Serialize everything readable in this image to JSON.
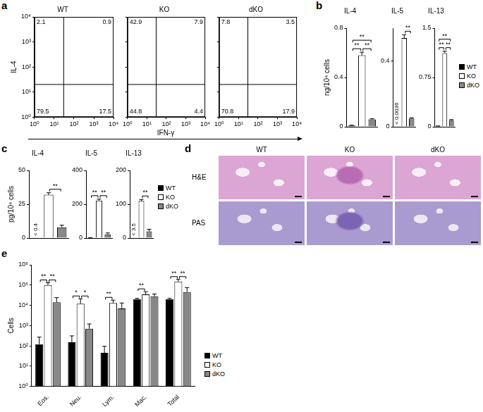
{
  "chart_data": [
    {
      "panel": "a",
      "type": "scatter",
      "log": true,
      "x_label": "IFN-γ",
      "y_label": "IL-4",
      "xlim": [
        1,
        10000
      ],
      "ylim": [
        1,
        10000
      ],
      "xticks": [
        {
          "value": 1,
          "label": "10⁰"
        },
        {
          "value": 10,
          "label": "10¹"
        },
        {
          "value": 100,
          "label": "10²"
        },
        {
          "value": 1000,
          "label": "10³"
        },
        {
          "value": 10000,
          "label": "10⁴"
        }
      ],
      "yticks": [
        {
          "value": 1,
          "label": "10⁰"
        },
        {
          "value": 10,
          "label": "10¹"
        },
        {
          "value": 100,
          "label": "10²"
        },
        {
          "value": 1000,
          "label": "10³"
        },
        {
          "value": 10000,
          "label": "10⁴"
        }
      ],
      "gate": {
        "x": 30,
        "y": 20
      },
      "plots": [
        {
          "title": "WT",
          "quadrants": {
            "upper_left": 2.1,
            "upper_right": 0.9,
            "lower_left": 79.5,
            "lower_right": 17.5
          }
        },
        {
          "title": "KO",
          "quadrants": {
            "upper_left": 42.9,
            "upper_right": 7.9,
            "lower_left": 44.8,
            "lower_right": 4.4
          }
        },
        {
          "title": "dKO",
          "quadrants": {
            "upper_left": 7.8,
            "upper_right": 3.5,
            "lower_left": 70.8,
            "lower_right": 17.9
          }
        }
      ]
    },
    {
      "panel": "b",
      "type": "bar",
      "y_label": "ng/10⁴ cells",
      "categories": [
        "WT",
        "KO",
        "dKO"
      ],
      "colors": [
        "#000000",
        "#ffffff",
        "#888888"
      ],
      "tick_labels": "y",
      "legend": "right",
      "plots": [
        {
          "title": "IL-4",
          "ylim": [
            0,
            0.8
          ],
          "yticks": [
            0,
            0.4,
            0.8
          ],
          "values": [
            0.01,
            0.58,
            0.06
          ],
          "errors": [
            0.003,
            0.025,
            0.005
          ],
          "significance": [
            {
              "pair": [
                "WT",
                "KO"
              ],
              "label": "**"
            },
            {
              "pair": [
                "KO",
                "dKO"
              ],
              "label": "**"
            },
            {
              "pair": [
                "WT",
                "dKO"
              ],
              "label": "**"
            }
          ]
        },
        {
          "title": "IL-5",
          "ylim": [
            0,
            0.6
          ],
          "yticks": [
            0,
            0.4
          ],
          "values": [
            null,
            0.54,
            0.05
          ],
          "errors": [
            null,
            0.02,
            0.005
          ],
          "annotations": [
            {
              "category": "WT",
              "text": "< 0.0036"
            }
          ],
          "significance": [
            {
              "pair": [
                "KO",
                "dKO"
              ],
              "label": "**"
            }
          ]
        },
        {
          "title": "IL-13",
          "ylim": [
            0,
            1.5
          ],
          "yticks": [
            0,
            0.75,
            1.5
          ],
          "values": [
            0.01,
            1.12,
            0.1
          ],
          "errors": [
            0.003,
            0.03,
            0.01
          ],
          "significance": [
            {
              "pair": [
                "WT",
                "KO"
              ],
              "label": "**"
            },
            {
              "pair": [
                "KO",
                "dKO"
              ],
              "label": "**"
            },
            {
              "pair": [
                "WT",
                "dKO"
              ],
              "label": "**"
            }
          ]
        }
      ]
    },
    {
      "panel": "c",
      "type": "bar",
      "y_label": "pg/10⁴ cells",
      "categories": [
        "WT",
        "KO",
        "dKO"
      ],
      "colors": [
        "#000000",
        "#ffffff",
        "#888888"
      ],
      "tick_labels": "y",
      "legend": "right",
      "plots": [
        {
          "title": "IL-4",
          "ylim": [
            0,
            50
          ],
          "yticks": [
            0,
            25,
            50
          ],
          "values": [
            null,
            32,
            8
          ],
          "errors": [
            null,
            1.5,
            1.5
          ],
          "annotations": [
            {
              "category": "WT",
              "text": "< 0.4"
            }
          ],
          "significance": [
            {
              "pair": [
                "KO",
                "dKO"
              ],
              "label": "**"
            }
          ]
        },
        {
          "title": "IL-5",
          "ylim": [
            0,
            400
          ],
          "yticks": [
            0,
            200,
            400
          ],
          "values": [
            1,
            222,
            22
          ],
          "errors": [
            0.5,
            8,
            8
          ],
          "significance": [
            {
              "pair": [
                "WT",
                "KO"
              ],
              "label": "**"
            },
            {
              "pair": [
                "KO",
                "dKO"
              ],
              "label": "**"
            }
          ]
        },
        {
          "title": "IL-13",
          "ylim": [
            0,
            200
          ],
          "yticks": [
            0,
            100,
            200
          ],
          "values": [
            null,
            110,
            20
          ],
          "errors": [
            null,
            4,
            6
          ],
          "annotations": [
            {
              "category": "WT",
              "text": "< 3.5"
            }
          ],
          "significance": [
            {
              "pair": [
                "KO",
                "dKO"
              ],
              "label": "**"
            }
          ]
        }
      ]
    },
    {
      "panel": "e",
      "type": "bar",
      "log": "y",
      "y_label": "Cells",
      "legend": "right",
      "categories": [
        "Eos.",
        "Neu.",
        "Lym.",
        "Mac.",
        "Total"
      ],
      "ylim": [
        1,
        1000000
      ],
      "yticks": [
        {
          "value": 1,
          "label": "10⁰"
        },
        {
          "value": 10,
          "label": "10¹"
        },
        {
          "value": 100,
          "label": "10²"
        },
        {
          "value": 1000,
          "label": "10³"
        },
        {
          "value": 10000,
          "label": "10⁴"
        },
        {
          "value": 100000,
          "label": "10⁵"
        },
        {
          "value": 1000000,
          "label": "10⁶"
        }
      ],
      "series": [
        {
          "name": "WT",
          "color": "#000000",
          "values": [
            120,
            150,
            45,
            20000,
            20000
          ],
          "errors": [
            150,
            160,
            50,
            2000,
            2000
          ]
        },
        {
          "name": "KO",
          "color": "#ffffff",
          "values": [
            100000,
            12000,
            13000,
            35000,
            150000
          ],
          "errors": [
            30000,
            9000,
            5000,
            12000,
            40000
          ]
        },
        {
          "name": "dKO",
          "color": "#888888",
          "values": [
            14000,
            700,
            7000,
            28000,
            45000
          ],
          "errors": [
            10000,
            500,
            6000,
            8000,
            30000
          ]
        }
      ],
      "significance": [
        {
          "category": "Eos.",
          "pair": [
            "WT",
            "KO"
          ],
          "label": "**"
        },
        {
          "category": "Eos.",
          "pair": [
            "KO",
            "dKO"
          ],
          "label": "**"
        },
        {
          "category": "Neu.",
          "pair": [
            "WT",
            "KO"
          ],
          "label": "*"
        },
        {
          "category": "Neu.",
          "pair": [
            "KO",
            "dKO"
          ],
          "label": "*"
        },
        {
          "category": "Lym.",
          "pair": [
            "WT",
            "KO"
          ],
          "label": "**"
        },
        {
          "category": "Mac.",
          "pair": [
            "WT",
            "KO"
          ],
          "label": "**"
        },
        {
          "category": "Total",
          "pair": [
            "WT",
            "KO"
          ],
          "label": "**"
        },
        {
          "category": "Total",
          "pair": [
            "KO",
            "dKO"
          ],
          "label": "**"
        }
      ]
    }
  ],
  "histology": {
    "panel": "d",
    "columns": [
      "WT",
      "KO",
      "dKO"
    ],
    "rows": [
      "H&E",
      "PAS"
    ]
  }
}
